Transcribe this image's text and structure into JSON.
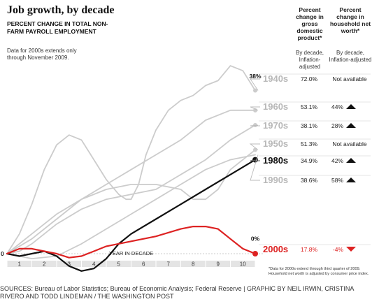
{
  "header": {
    "title": "Job growth, by decade",
    "subtitle": "PERCENT CHANGE IN TOTAL NON-FARM PAYROLL EMPLOYMENT",
    "note": "Data for 2000s extends only through November 2009."
  },
  "columns": {
    "gdp_title": "Percent change in gross domestic product*",
    "gdp_sub": "By decade, Inflation-adjusted",
    "nw_title": "Percent change in household net worth*",
    "nw_sub": "By decade, Inflation-adjusted"
  },
  "colors": {
    "gray": "#cccccc",
    "black": "#111111",
    "red": "#dd2222",
    "label_gray": "#b8b8b8"
  },
  "chart_data": {
    "type": "line",
    "title": "Job growth, by decade",
    "xlabel": "YEAR IN DECADE",
    "x_ticks": [
      "1",
      "2",
      "3",
      "4",
      "5",
      "6",
      "7",
      "8",
      "9",
      "10"
    ],
    "xlim": [
      0,
      10.1
    ],
    "ylim": [
      -5,
      40
    ],
    "y_tick_labels": [
      "0"
    ],
    "annotations": [
      "38%",
      "0%"
    ],
    "series": [
      {
        "name": "1940s",
        "gdp": "72.0%",
        "net_worth": "Not available",
        "nw_arrow": "",
        "points": [
          [
            0,
            0
          ],
          [
            0.5,
            4
          ],
          [
            1,
            10
          ],
          [
            1.5,
            17
          ],
          [
            2,
            22
          ],
          [
            2.5,
            24
          ],
          [
            3,
            23
          ],
          [
            3.5,
            19
          ],
          [
            4,
            15
          ],
          [
            4.5,
            12
          ],
          [
            4.8,
            11
          ],
          [
            5,
            11
          ],
          [
            5.3,
            14
          ],
          [
            5.6,
            20
          ],
          [
            6,
            25
          ],
          [
            6.5,
            29
          ],
          [
            7,
            31
          ],
          [
            7.5,
            32
          ],
          [
            8,
            34
          ],
          [
            8.5,
            35
          ],
          [
            9,
            38
          ],
          [
            9.5,
            37
          ],
          [
            10,
            33
          ]
        ]
      },
      {
        "name": "1960s",
        "gdp": "53.1%",
        "net_worth": "44%",
        "nw_arrow": "up",
        "points": [
          [
            0,
            0
          ],
          [
            1,
            3
          ],
          [
            2,
            7
          ],
          [
            3,
            11
          ],
          [
            4,
            14
          ],
          [
            5,
            17
          ],
          [
            6,
            20
          ],
          [
            7,
            23
          ],
          [
            8,
            27
          ],
          [
            9,
            29
          ],
          [
            10,
            29
          ]
        ]
      },
      {
        "name": "1970s",
        "gdp": "38.1%",
        "net_worth": "28%",
        "nw_arrow": "up",
        "points": [
          [
            0,
            0
          ],
          [
            0.5,
            0.5
          ],
          [
            1,
            2
          ],
          [
            2,
            6
          ],
          [
            3,
            9
          ],
          [
            4,
            11
          ],
          [
            5,
            12
          ],
          [
            6,
            13
          ],
          [
            7,
            16
          ],
          [
            8,
            19
          ],
          [
            9,
            23
          ],
          [
            10,
            26
          ]
        ]
      },
      {
        "name": "1950s",
        "gdp": "51.3%",
        "net_worth": "Not available",
        "nw_arrow": "",
        "points": [
          [
            0,
            0
          ],
          [
            1,
            4
          ],
          [
            2,
            8
          ],
          [
            3,
            11
          ],
          [
            4,
            13
          ],
          [
            5,
            14
          ],
          [
            6,
            14
          ],
          [
            7,
            13
          ],
          [
            7.5,
            11
          ],
          [
            8,
            11
          ],
          [
            8.5,
            13
          ],
          [
            9,
            17
          ],
          [
            10,
            21
          ]
        ]
      },
      {
        "name": "1990s",
        "gdp": "38.6%",
        "net_worth": "58%",
        "nw_arrow": "up",
        "points": [
          [
            0,
            0
          ],
          [
            0.5,
            -0.5
          ],
          [
            1,
            -1
          ],
          [
            2,
            -0.5
          ],
          [
            3,
            2
          ],
          [
            4,
            5
          ],
          [
            5,
            8
          ],
          [
            6,
            11
          ],
          [
            7,
            14
          ],
          [
            8,
            17
          ],
          [
            9,
            19
          ],
          [
            10,
            20
          ]
        ]
      },
      {
        "name": "1980s",
        "gdp": "34.9%",
        "net_worth": "42%",
        "nw_arrow": "up",
        "points": [
          [
            0,
            0
          ],
          [
            0.5,
            -0.5
          ],
          [
            1,
            0
          ],
          [
            1.5,
            0.5
          ],
          [
            2,
            -0.5
          ],
          [
            2.5,
            -2.5
          ],
          [
            3,
            -3.5
          ],
          [
            3.5,
            -3
          ],
          [
            4,
            -1
          ],
          [
            4.5,
            2
          ],
          [
            5,
            4
          ],
          [
            6,
            7
          ],
          [
            7,
            10
          ],
          [
            8,
            13
          ],
          [
            9,
            16
          ],
          [
            10,
            19
          ]
        ]
      },
      {
        "name": "2000s",
        "gdp": "17.8%",
        "net_worth": "-4%",
        "nw_arrow": "down",
        "points": [
          [
            0,
            0
          ],
          [
            0.5,
            1
          ],
          [
            1,
            1
          ],
          [
            1.5,
            0.5
          ],
          [
            2,
            0
          ],
          [
            2.5,
            -0.8
          ],
          [
            3,
            -0.5
          ],
          [
            3.5,
            0.5
          ],
          [
            4,
            1.5
          ],
          [
            5,
            2.5
          ],
          [
            6,
            3.5
          ],
          [
            7,
            5
          ],
          [
            7.5,
            5.5
          ],
          [
            8,
            5.5
          ],
          [
            8.5,
            5
          ],
          [
            9,
            3
          ],
          [
            9.5,
            1
          ],
          [
            10,
            0
          ]
        ]
      }
    ]
  },
  "footnote": "*Data for 2000s extend through third quarter of 2009. Household net worth is adjusted by consumer price index.",
  "sources": "SOURCES: Bureau of Labor Statistics; Bureau of Economic Analysis; Federal Reserve | GRAPHIC BY NEIL IRWIN, CRISTINA RIVERO AND TODD LINDEMAN / THE WASHINGTON POST"
}
